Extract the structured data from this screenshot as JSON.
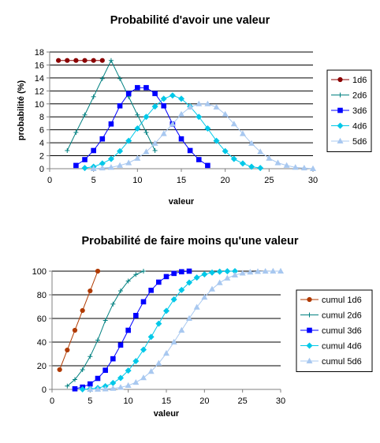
{
  "chart_data": [
    {
      "type": "line",
      "title": "Probabilité d'avoir une valeur",
      "xlabel": "valeur",
      "ylabel": "probabilité (%)",
      "xlim": [
        0,
        30
      ],
      "ylim": [
        0,
        18
      ],
      "xticks": [
        0,
        5,
        10,
        15,
        20,
        25,
        30
      ],
      "yticks": [
        0,
        2,
        4,
        6,
        8,
        10,
        12,
        14,
        16,
        18
      ],
      "grid": "horizontal",
      "legend_position": "right",
      "series": [
        {
          "name": "1d6",
          "color": "#8b0000",
          "marker": "circle",
          "x": [
            1,
            2,
            3,
            4,
            5,
            6
          ],
          "y": [
            16.7,
            16.7,
            16.7,
            16.7,
            16.7,
            16.7
          ]
        },
        {
          "name": "2d6",
          "color": "#008080",
          "marker": "plus",
          "x": [
            2,
            3,
            4,
            5,
            6,
            7,
            8,
            9,
            10,
            11,
            12
          ],
          "y": [
            2.8,
            5.6,
            8.3,
            11.1,
            13.9,
            16.7,
            13.9,
            11.1,
            8.3,
            5.6,
            2.8
          ]
        },
        {
          "name": "3d6",
          "color": "#0000ff",
          "marker": "square",
          "x": [
            3,
            4,
            5,
            6,
            7,
            8,
            9,
            10,
            11,
            12,
            13,
            14,
            15,
            16,
            17,
            18
          ],
          "y": [
            0.5,
            1.4,
            2.8,
            4.6,
            6.9,
            9.7,
            11.6,
            12.5,
            12.5,
            11.6,
            9.7,
            6.9,
            4.6,
            2.8,
            1.4,
            0.5
          ]
        },
        {
          "name": "4d6",
          "color": "#00c8e8",
          "marker": "diamond",
          "x": [
            4,
            5,
            6,
            7,
            8,
            9,
            10,
            11,
            12,
            13,
            14,
            15,
            16,
            17,
            18,
            19,
            20,
            21,
            22,
            23,
            24
          ],
          "y": [
            0.1,
            0.3,
            0.8,
            1.5,
            2.7,
            4.3,
            6.2,
            8.0,
            9.6,
            10.8,
            11.3,
            10.8,
            9.6,
            8.0,
            6.2,
            4.3,
            2.7,
            1.5,
            0.8,
            0.3,
            0.1
          ]
        },
        {
          "name": "5d6",
          "color": "#a8c8f0",
          "marker": "triangle",
          "x": [
            5,
            6,
            7,
            8,
            9,
            10,
            11,
            12,
            13,
            14,
            15,
            16,
            17,
            18,
            19,
            20,
            21,
            22,
            23,
            24,
            25,
            26,
            27,
            28,
            29,
            30
          ],
          "y": [
            0.0,
            0.1,
            0.2,
            0.5,
            0.9,
            1.6,
            2.6,
            3.9,
            5.4,
            6.9,
            8.4,
            9.5,
            10.0,
            10.0,
            9.5,
            8.4,
            6.9,
            5.4,
            3.9,
            2.6,
            1.6,
            0.9,
            0.5,
            0.2,
            0.1,
            0.0
          ]
        }
      ]
    },
    {
      "type": "line",
      "title": "Probabilité de faire moins qu'une valeur",
      "xlabel": "valeur",
      "ylabel": "",
      "xlim": [
        0,
        30
      ],
      "ylim": [
        0,
        100
      ],
      "xticks": [
        0,
        5,
        10,
        15,
        20,
        25,
        30
      ],
      "yticks": [
        0,
        20,
        40,
        60,
        80,
        100
      ],
      "grid": "horizontal",
      "legend_position": "right",
      "series": [
        {
          "name": "cumul 1d6",
          "color": "#b03a00",
          "marker": "circle",
          "x": [
            1,
            2,
            3,
            4,
            5,
            6
          ],
          "y": [
            16.7,
            33.3,
            50,
            66.7,
            83.3,
            100
          ]
        },
        {
          "name": "cumul 2d6",
          "color": "#008080",
          "marker": "plus",
          "x": [
            2,
            3,
            4,
            5,
            6,
            7,
            8,
            9,
            10,
            11,
            12
          ],
          "y": [
            2.8,
            8.3,
            16.7,
            27.8,
            41.7,
            58.3,
            72.2,
            83.3,
            91.7,
            97.2,
            100
          ]
        },
        {
          "name": "cumul 3d6",
          "color": "#0000ff",
          "marker": "square",
          "x": [
            3,
            4,
            5,
            6,
            7,
            8,
            9,
            10,
            11,
            12,
            13,
            14,
            15,
            16,
            17,
            18
          ],
          "y": [
            0.5,
            1.9,
            4.6,
            9.3,
            16.2,
            25.9,
            37.5,
            50,
            62.5,
            74.1,
            83.8,
            90.7,
            95.4,
            98.1,
            99.5,
            100
          ]
        },
        {
          "name": "cumul 4d6",
          "color": "#00c8e8",
          "marker": "diamond",
          "x": [
            4,
            5,
            6,
            7,
            8,
            9,
            10,
            11,
            12,
            13,
            14,
            15,
            16,
            17,
            18,
            19,
            20,
            21,
            22,
            23,
            24
          ],
          "y": [
            0.1,
            0.4,
            1.2,
            2.7,
            5.4,
            9.7,
            15.9,
            23.9,
            33.6,
            44.4,
            55.6,
            66.4,
            76.1,
            84.1,
            90.3,
            94.6,
            97.3,
            98.8,
            99.6,
            99.9,
            100
          ]
        },
        {
          "name": "cumul 5d6",
          "color": "#a8c8f0",
          "marker": "triangle",
          "x": [
            5,
            6,
            7,
            8,
            9,
            10,
            11,
            12,
            13,
            14,
            15,
            16,
            17,
            18,
            19,
            20,
            21,
            22,
            23,
            24,
            25,
            26,
            27,
            28,
            29,
            30
          ],
          "y": [
            0.0,
            0.1,
            0.3,
            0.8,
            1.7,
            3.3,
            5.9,
            9.8,
            15.2,
            22.1,
            30.5,
            40,
            50,
            60,
            69.5,
            77.9,
            84.8,
            90.2,
            94.1,
            96.7,
            98.3,
            99.2,
            99.7,
            99.9,
            100,
            100
          ]
        }
      ]
    }
  ]
}
